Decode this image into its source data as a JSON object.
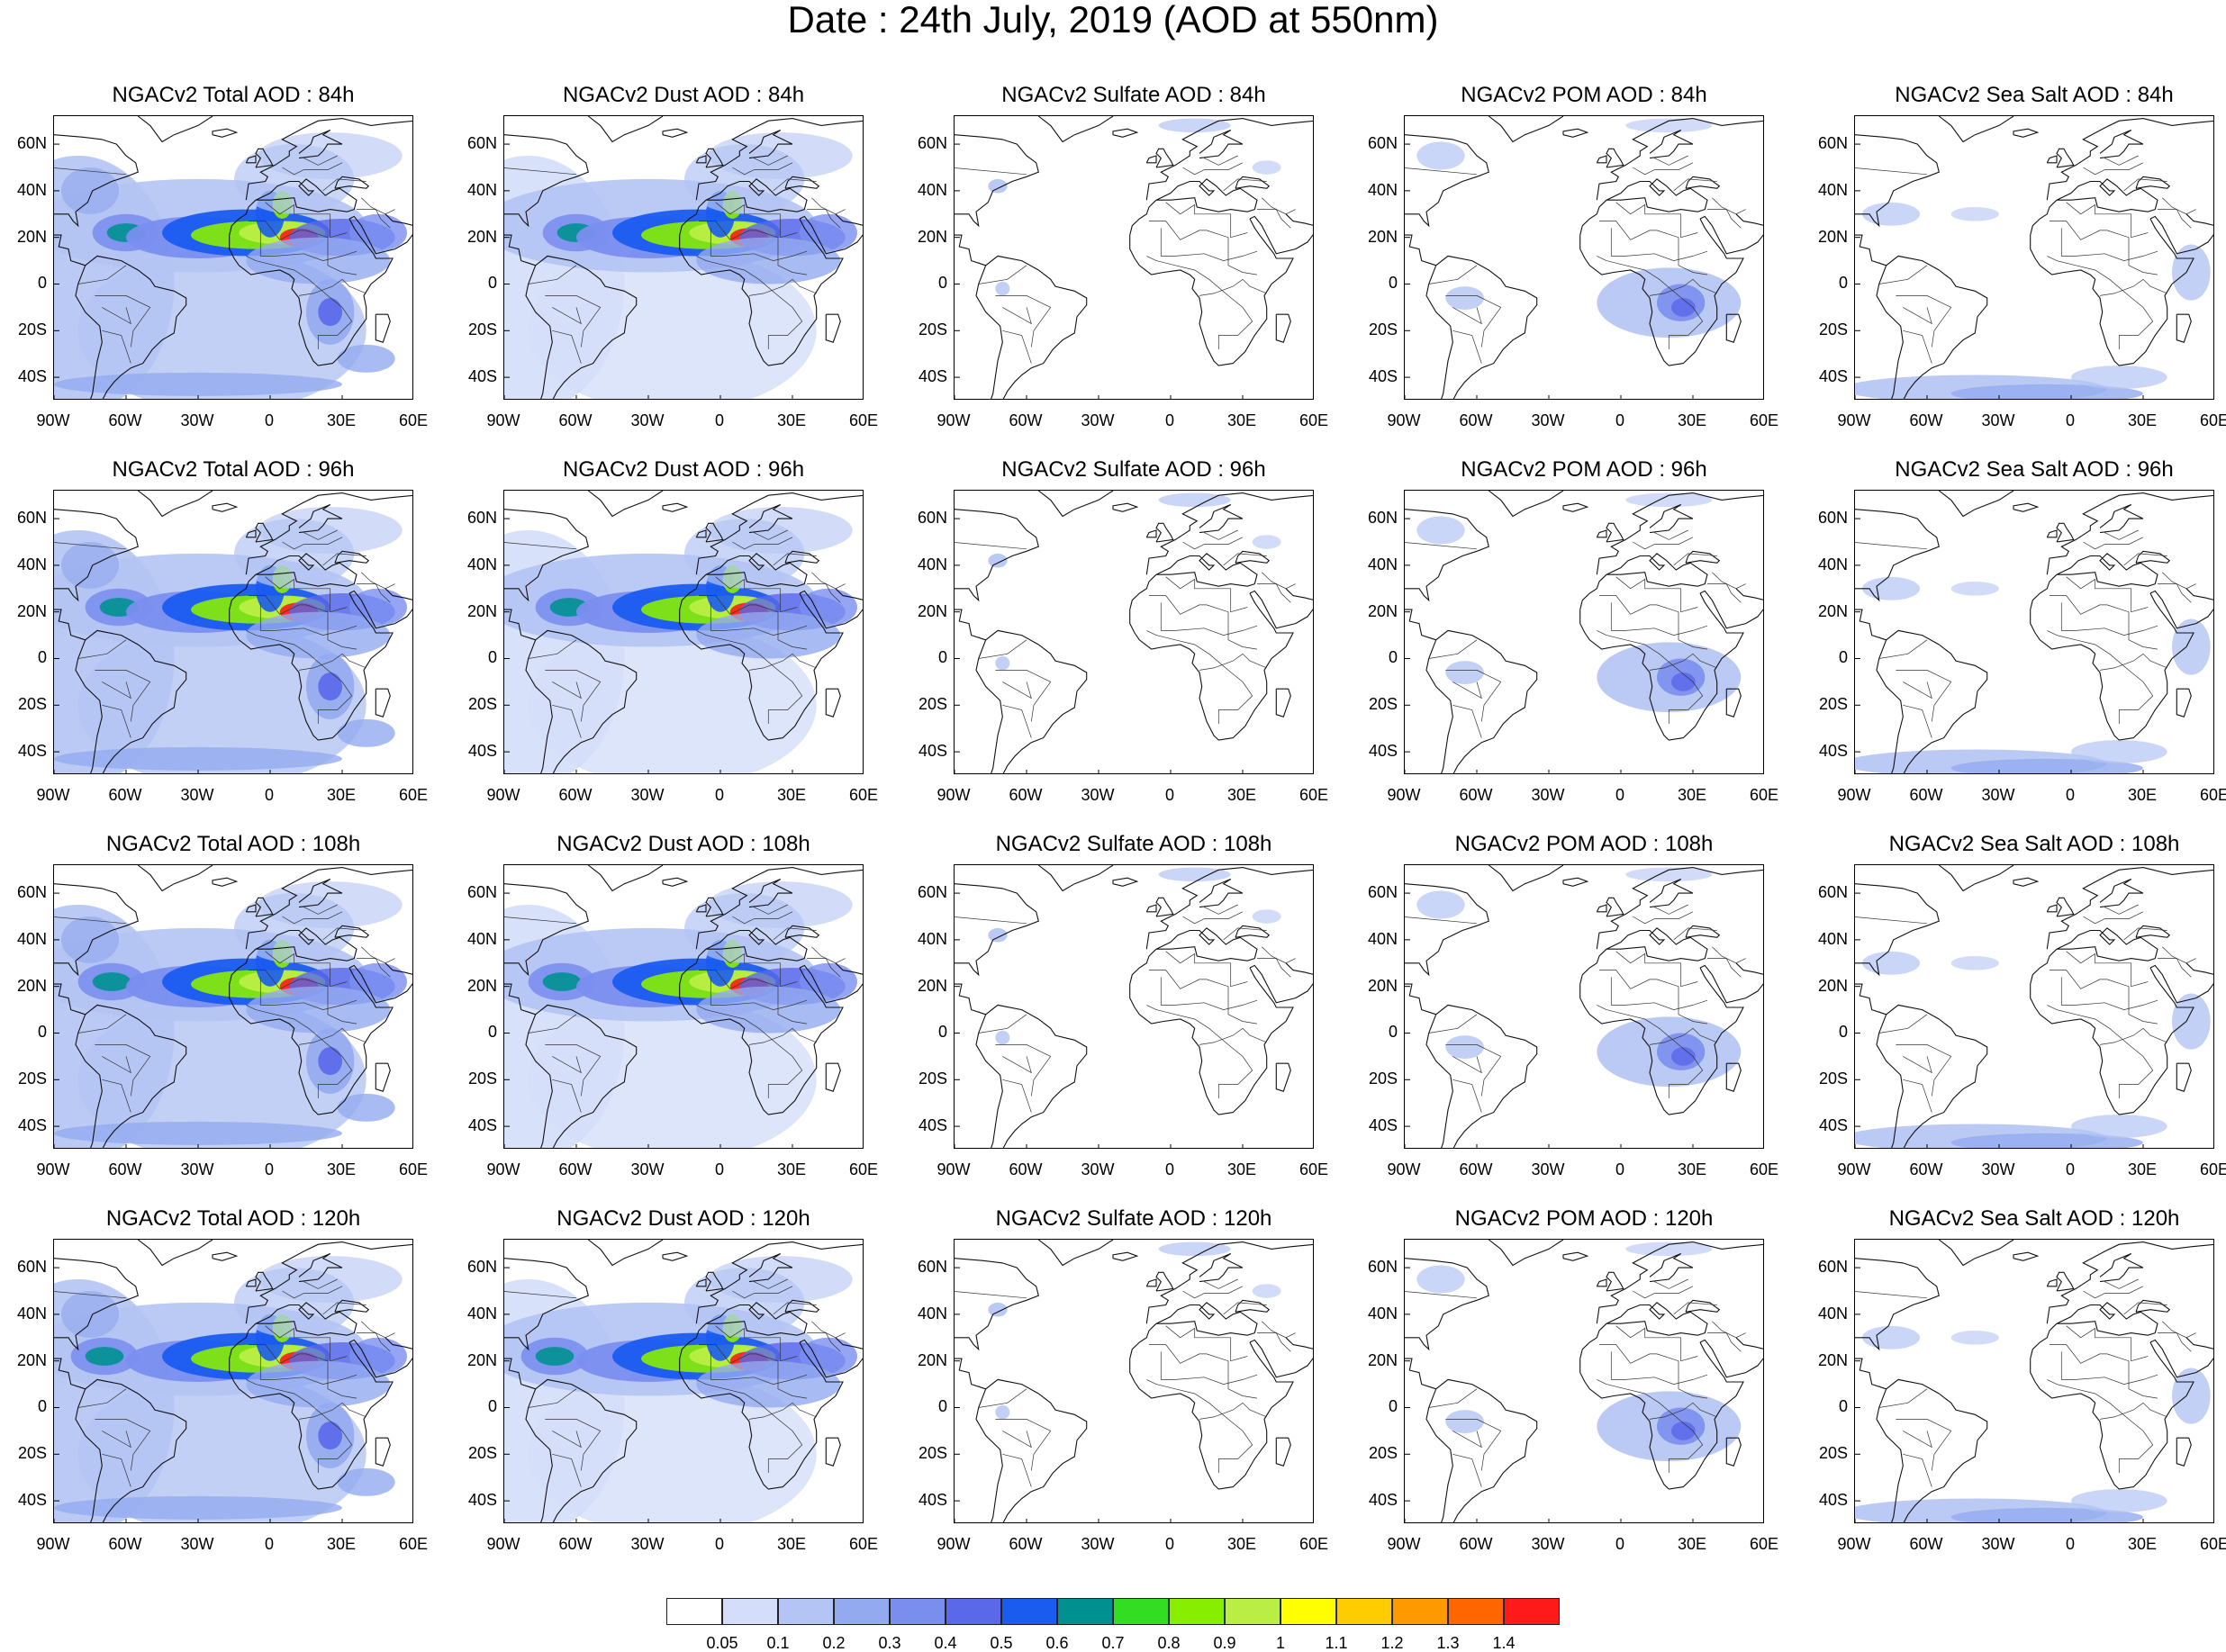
{
  "title": "Date : 24th July, 2019 (AOD at 550nm)",
  "lat_labels": [
    "60N",
    "40N",
    "20N",
    "0",
    "20S",
    "40S"
  ],
  "lon_labels": [
    "90W",
    "60W",
    "30W",
    "0",
    "30E",
    "60E"
  ],
  "panels": [
    {
      "title": "NGACv2 Total AOD : 84h",
      "species": "total"
    },
    {
      "title": "NGACv2 Dust AOD : 84h",
      "species": "dust"
    },
    {
      "title": "NGACv2 Sulfate AOD : 84h",
      "species": "sulfate"
    },
    {
      "title": "NGACv2 POM AOD : 84h",
      "species": "pom"
    },
    {
      "title": "NGACv2 Sea Salt AOD : 84h",
      "species": "seasalt"
    },
    {
      "title": "NGACv2 Total AOD : 96h",
      "species": "total"
    },
    {
      "title": "NGACv2 Dust AOD : 96h",
      "species": "dust"
    },
    {
      "title": "NGACv2 Sulfate AOD : 96h",
      "species": "sulfate"
    },
    {
      "title": "NGACv2 POM AOD : 96h",
      "species": "pom"
    },
    {
      "title": "NGACv2 Sea Salt AOD : 96h",
      "species": "seasalt"
    },
    {
      "title": "NGACv2 Total AOD : 108h",
      "species": "total"
    },
    {
      "title": "NGACv2 Dust AOD : 108h",
      "species": "dust"
    },
    {
      "title": "NGACv2 Sulfate AOD : 108h",
      "species": "sulfate"
    },
    {
      "title": "NGACv2 POM AOD : 108h",
      "species": "pom"
    },
    {
      "title": "NGACv2 Sea Salt AOD : 108h",
      "species": "seasalt"
    },
    {
      "title": "NGACv2 Total AOD : 120h",
      "species": "total"
    },
    {
      "title": "NGACv2 Dust AOD : 120h",
      "species": "dust"
    },
    {
      "title": "NGACv2 Sulfate AOD : 120h",
      "species": "sulfate"
    },
    {
      "title": "NGACv2 POM AOD : 120h",
      "species": "pom"
    },
    {
      "title": "NGACv2 Sea Salt  AOD : 120h",
      "species": "seasalt"
    }
  ],
  "colorbar": {
    "labels": [
      "0.05",
      "0.1",
      "0.2",
      "0.3",
      "0.4",
      "0.5",
      "0.6",
      "0.7",
      "0.8",
      "0.9",
      "1",
      "1.1",
      "1.2",
      "1.3",
      "1.4"
    ],
    "colors": [
      "#ffffff",
      "#d4defa",
      "#b4c4f4",
      "#94aaf0",
      "#7a8ef0",
      "#5a68ea",
      "#1a5cf0",
      "#009090",
      "#33dd22",
      "#88ee00",
      "#bbee44",
      "#ffff00",
      "#ffcc00",
      "#ff9900",
      "#ff6600",
      "#ff1a1a"
    ]
  }
}
